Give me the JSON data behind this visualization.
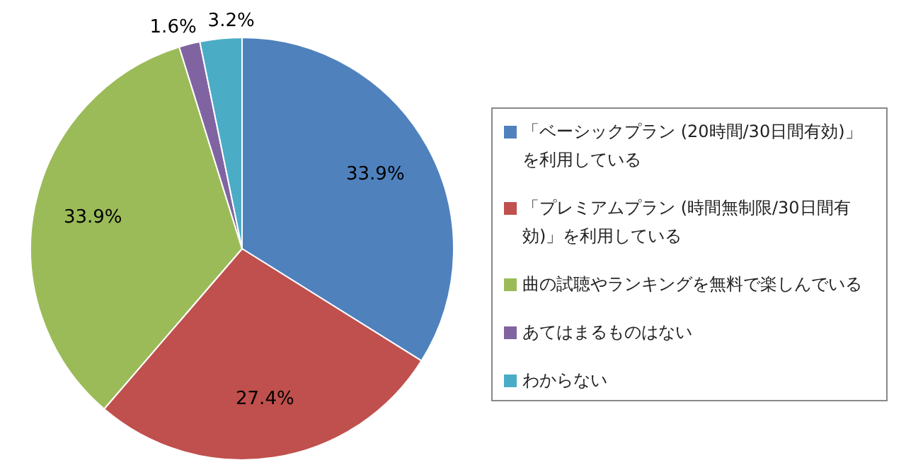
{
  "chart_data": {
    "type": "pie",
    "categories": [
      "「ベーシックプラン (20時間/30日間有効)」を利用している",
      "「プレミアムプラン (時間無制限/30日間有効)」を利用している",
      "曲の試聴やランキングを無料で楽しんでいる",
      "あてはまるものはない",
      "わからない"
    ],
    "values": [
      33.9,
      27.4,
      33.9,
      1.6,
      3.2
    ],
    "colors": [
      "#4f81bd",
      "#c0504d",
      "#9bbb59",
      "#8064a2",
      "#4bacc6"
    ],
    "value_labels": [
      "33.9%",
      "27.4%",
      "33.9%",
      "1.6%",
      "3.2%"
    ],
    "legend": "right"
  }
}
